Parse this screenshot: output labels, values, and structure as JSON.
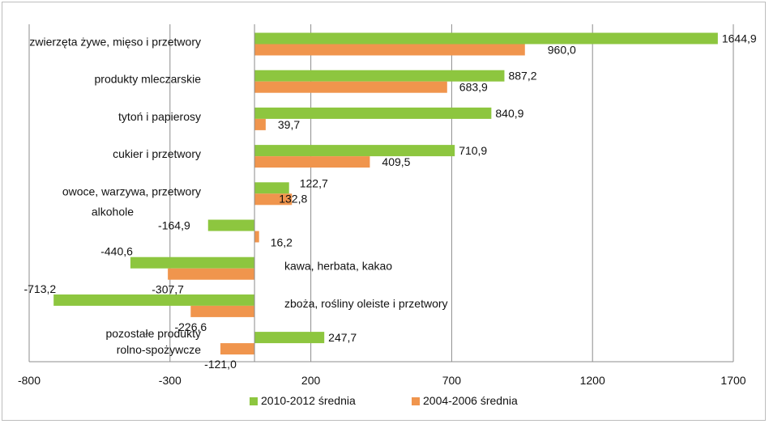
{
  "chart_data": {
    "type": "bar",
    "orientation": "horizontal",
    "xlim": [
      -800,
      1700
    ],
    "x_ticks": [
      -800,
      -300,
      200,
      700,
      1200,
      1700
    ],
    "x_tick_labels": [
      "-800",
      "-300",
      "200",
      "700",
      "1200",
      "1700"
    ],
    "grid": "vertical",
    "legend_position": "bottom",
    "categories": [
      [
        "zwierzęta żywe, mięso i przetwory"
      ],
      [
        "produkty mleczarskie"
      ],
      [
        "tytoń i papierosy"
      ],
      [
        "cukier i przetwory"
      ],
      [
        "owoce, warzywa, przetwory"
      ],
      [
        "alkohole"
      ],
      [
        "kawa, herbata, kakao"
      ],
      [
        "zboża, rośliny oleiste i przetwory"
      ],
      [
        "pozostałe produkty",
        "rolno-spożywcze"
      ]
    ],
    "series": [
      {
        "name": "2010-2012 średnia",
        "color": "#8dc63f",
        "values": [
          1644.9,
          887.2,
          840.9,
          710.9,
          122.7,
          -164.9,
          -440.6,
          -713.2,
          247.7
        ],
        "labels": [
          "1644,9",
          "887,2",
          "840,9",
          "710,9",
          "122,7",
          "-164,9",
          "-440,6",
          "-713,2",
          "247,7"
        ]
      },
      {
        "name": "2004-2006 średnia",
        "color": "#f0954d",
        "values": [
          960.0,
          683.9,
          39.7,
          409.5,
          132.8,
          16.2,
          -307.7,
          -226.6,
          -121.0
        ],
        "labels": [
          "960,0",
          "683,9",
          "39,7",
          "409,5",
          "132,8",
          "16,2",
          "-307,7",
          "-226,6",
          "-121,0"
        ]
      }
    ]
  }
}
